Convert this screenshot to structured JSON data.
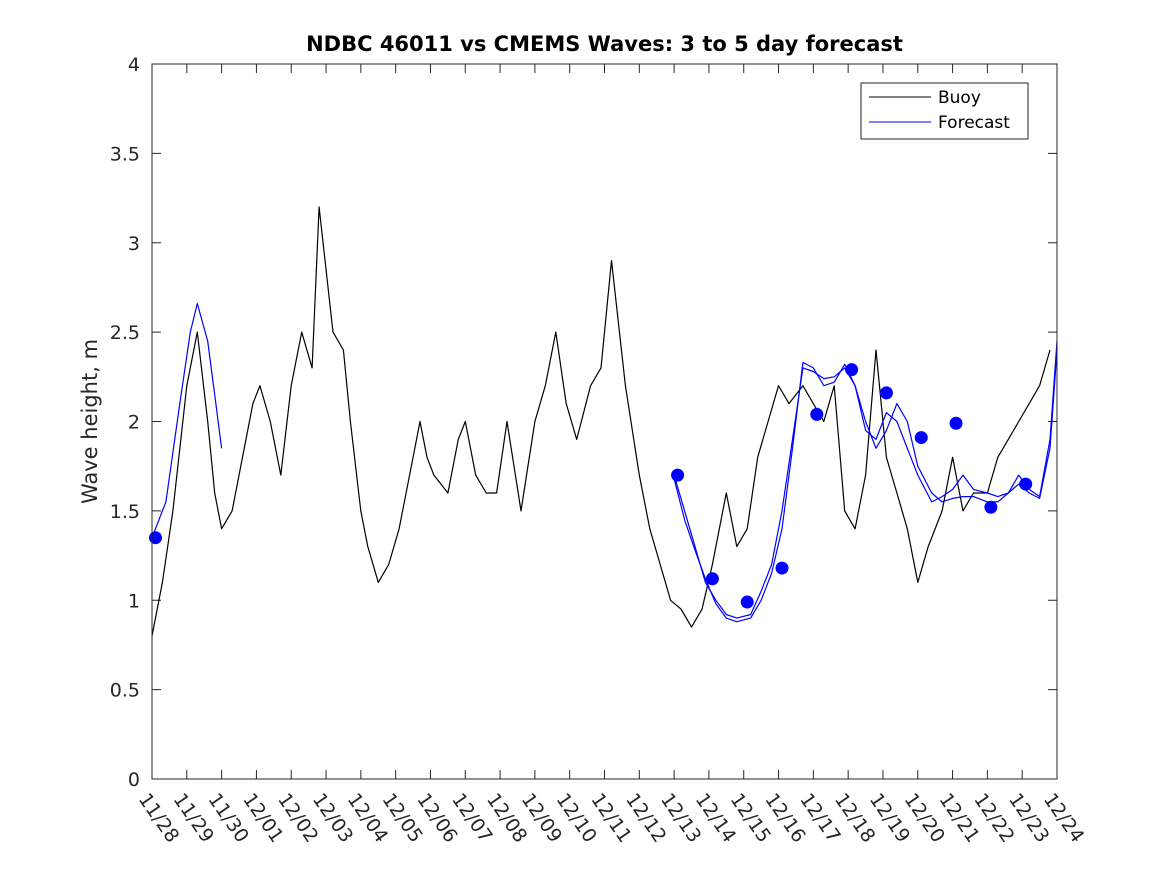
{
  "chart_data": {
    "type": "line",
    "title": "NDBC 46011 vs CMEMS Waves: 3 to 5 day forecast",
    "xlabel": "",
    "ylabel": "Wave height, m",
    "xlim": [
      0,
      26
    ],
    "ylim": [
      0,
      4
    ],
    "yticks": [
      0,
      0.5,
      1,
      1.5,
      2,
      2.5,
      3,
      3.5,
      4
    ],
    "ytick_labels": [
      "0",
      "0.5",
      "1",
      "1.5",
      "2",
      "2.5",
      "3",
      "3.5",
      "4"
    ],
    "xticks": [
      0,
      1,
      2,
      3,
      4,
      5,
      6,
      7,
      8,
      9,
      10,
      11,
      12,
      13,
      14,
      15,
      16,
      17,
      18,
      19,
      20,
      21,
      22,
      23,
      24,
      25,
      26
    ],
    "xtick_labels": [
      "11/28",
      "11/29",
      "11/30",
      "12/01",
      "12/02",
      "12/03",
      "12/04",
      "12/05",
      "12/06",
      "12/07",
      "12/08",
      "12/09",
      "12/10",
      "12/11",
      "12/12",
      "12/13",
      "12/14",
      "12/15",
      "12/16",
      "12/17",
      "12/18",
      "12/19",
      "12/20",
      "12/21",
      "12/22",
      "12/23",
      "12/24"
    ],
    "legend": {
      "location": "top-right",
      "entries": [
        "Buoy",
        "Forecast"
      ]
    },
    "colors": {
      "buoy": "#000000",
      "forecast": "#0000ff",
      "axis": "#262626"
    },
    "series": [
      {
        "name": "Buoy",
        "color": "#000000",
        "x": [
          0,
          0.3,
          0.6,
          1.0,
          1.3,
          1.6,
          1.8,
          2.0,
          2.3,
          2.6,
          2.9,
          3.1,
          3.4,
          3.7,
          4.0,
          4.3,
          4.6,
          4.8,
          5.2,
          5.5,
          5.7,
          6.0,
          6.2,
          6.5,
          6.8,
          7.1,
          7.4,
          7.7,
          7.9,
          8.1,
          8.5,
          8.8,
          9.0,
          9.3,
          9.6,
          9.9,
          10.2,
          10.6,
          11.0,
          11.3,
          11.6,
          11.9,
          12.2,
          12.6,
          12.9,
          13.2,
          13.6,
          14.0,
          14.3,
          14.6,
          14.9,
          15.2,
          15.5,
          15.8,
          16.1,
          16.5,
          16.8,
          17.1,
          17.4,
          17.7,
          18.0,
          18.3,
          18.7,
          19.0,
          19.3,
          19.6,
          19.9,
          20.2,
          20.5,
          20.8,
          21.1,
          21.4,
          21.7,
          22.0,
          22.3,
          22.7,
          23.0,
          23.3,
          23.6,
          24.0,
          24.3,
          24.6,
          24.9,
          25.2,
          25.5,
          25.8
        ],
        "y": [
          0.8,
          1.1,
          1.5,
          2.2,
          2.5,
          2.0,
          1.6,
          1.4,
          1.5,
          1.8,
          2.1,
          2.2,
          2.0,
          1.7,
          2.2,
          2.5,
          2.3,
          3.2,
          2.5,
          2.4,
          2.0,
          1.5,
          1.3,
          1.1,
          1.2,
          1.4,
          1.7,
          2.0,
          1.8,
          1.7,
          1.6,
          1.9,
          2.0,
          1.7,
          1.6,
          1.6,
          2.0,
          1.5,
          2.0,
          2.2,
          2.5,
          2.1,
          1.9,
          2.2,
          2.3,
          2.9,
          2.2,
          1.7,
          1.4,
          1.2,
          1.0,
          0.95,
          0.85,
          0.95,
          1.2,
          1.6,
          1.3,
          1.4,
          1.8,
          2.0,
          2.2,
          2.1,
          2.2,
          2.1,
          2.0,
          2.2,
          1.5,
          1.4,
          1.7,
          2.4,
          1.8,
          1.6,
          1.4,
          1.1,
          1.3,
          1.5,
          1.8,
          1.5,
          1.6,
          1.6,
          1.8,
          1.9,
          2.0,
          2.1,
          2.2,
          2.4
        ]
      },
      {
        "name": "Forecast",
        "color": "#0000ff",
        "x": [
          0,
          0.4,
          0.8,
          1.1,
          1.3,
          1.6,
          1.8,
          2.0
        ],
        "y": [
          1.35,
          1.55,
          2.1,
          2.5,
          2.66,
          2.45,
          2.15,
          1.85
        ]
      },
      {
        "name": "Forecast",
        "color": "#0000ff",
        "x": [
          15.0,
          15.3,
          15.6,
          15.9,
          16.2,
          16.5,
          16.8,
          17.2,
          17.5,
          17.8,
          18.1,
          18.4,
          18.7,
          19.0,
          19.3,
          19.6,
          19.9,
          20.2,
          20.5,
          20.8,
          21.1,
          21.4,
          21.7,
          22.0,
          22.4,
          22.7,
          23.0,
          23.3,
          23.6,
          24.0,
          24.3,
          24.6,
          24.9,
          25.2,
          25.5,
          25.8,
          26.0
        ],
        "y": [
          1.7,
          1.5,
          1.3,
          1.1,
          1.0,
          0.92,
          0.9,
          0.92,
          1.05,
          1.2,
          1.5,
          1.9,
          2.3,
          2.28,
          2.24,
          2.25,
          2.3,
          2.2,
          1.95,
          1.9,
          2.05,
          2.0,
          1.85,
          1.7,
          1.55,
          1.58,
          1.62,
          1.7,
          1.62,
          1.6,
          1.58,
          1.6,
          1.7,
          1.62,
          1.58,
          1.9,
          2.45
        ]
      },
      {
        "name": "Forecast",
        "color": "#0000ff",
        "x": [
          15.0,
          15.3,
          15.6,
          15.9,
          16.2,
          16.5,
          16.8,
          17.2,
          17.5,
          17.8,
          18.1,
          18.4,
          18.7,
          19.0,
          19.3,
          19.6,
          19.9,
          20.2,
          20.5,
          20.8,
          21.1,
          21.4,
          21.7,
          22.0,
          22.4,
          22.7,
          23.0,
          23.3,
          23.6,
          24.0,
          24.3,
          24.6,
          24.9,
          25.2,
          25.5,
          25.8,
          26.0
        ],
        "y": [
          1.68,
          1.45,
          1.28,
          1.12,
          0.98,
          0.9,
          0.88,
          0.9,
          1.0,
          1.15,
          1.4,
          1.85,
          2.33,
          2.3,
          2.2,
          2.22,
          2.32,
          2.2,
          2.0,
          1.85,
          1.95,
          2.1,
          2.0,
          1.75,
          1.6,
          1.55,
          1.57,
          1.58,
          1.58,
          1.55,
          1.55,
          1.6,
          1.65,
          1.6,
          1.57,
          1.85,
          2.4
        ]
      }
    ],
    "markers": {
      "name": "Forecast start points",
      "color": "#0000ff",
      "x": [
        0.1,
        15.1,
        16.1,
        17.1,
        18.1,
        19.1,
        20.1,
        21.1,
        22.1,
        23.1,
        24.1,
        25.1
      ],
      "y": [
        1.35,
        1.7,
        1.12,
        0.99,
        1.18,
        2.04,
        2.29,
        2.16,
        1.91,
        1.99,
        1.52,
        1.65
      ]
    }
  }
}
